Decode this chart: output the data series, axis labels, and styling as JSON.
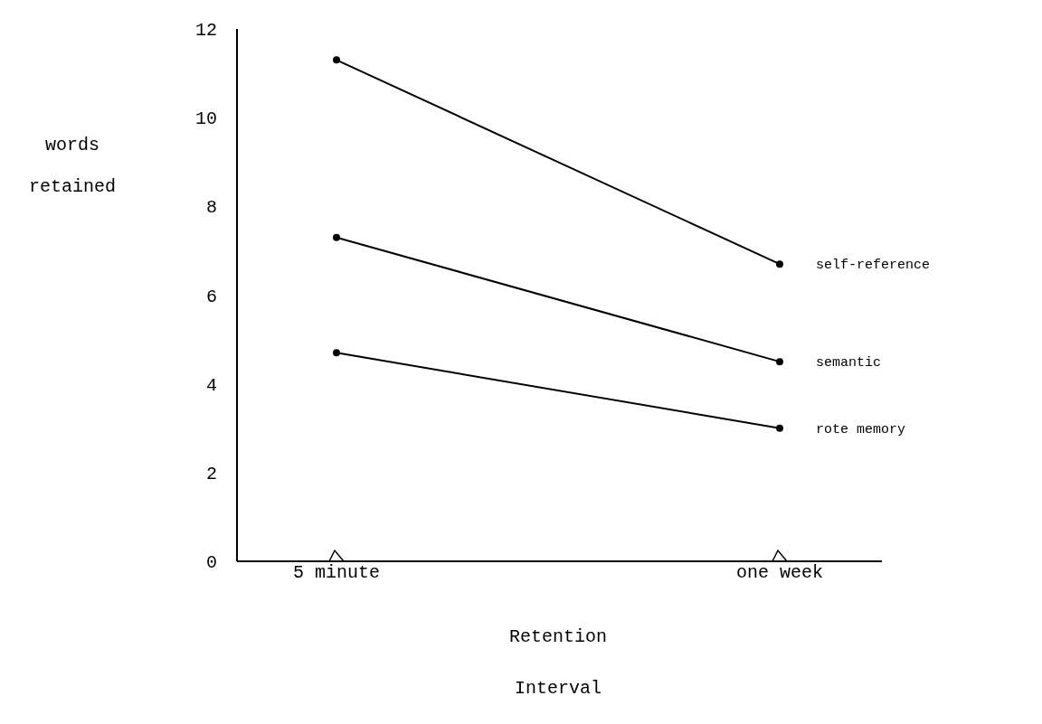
{
  "chart_data": {
    "type": "line",
    "xlabel": "Retention\nInterval",
    "ylabel": "words\nretained",
    "categories": [
      "5 minute",
      "one week"
    ],
    "series": [
      {
        "name": "self-reference",
        "color": "#000000",
        "values": [
          11.3,
          6.7
        ]
      },
      {
        "name": "semantic",
        "color": "#000000",
        "values": [
          7.3,
          4.5
        ]
      },
      {
        "name": "rote memory",
        "color": "#000000",
        "values": [
          4.7,
          3.0
        ]
      }
    ],
    "ylim": [
      0,
      12
    ],
    "yticks": [
      0,
      2,
      4,
      6,
      8,
      10,
      12
    ],
    "marker": "circle",
    "line_style": "solid",
    "grid": false,
    "legend": false
  }
}
